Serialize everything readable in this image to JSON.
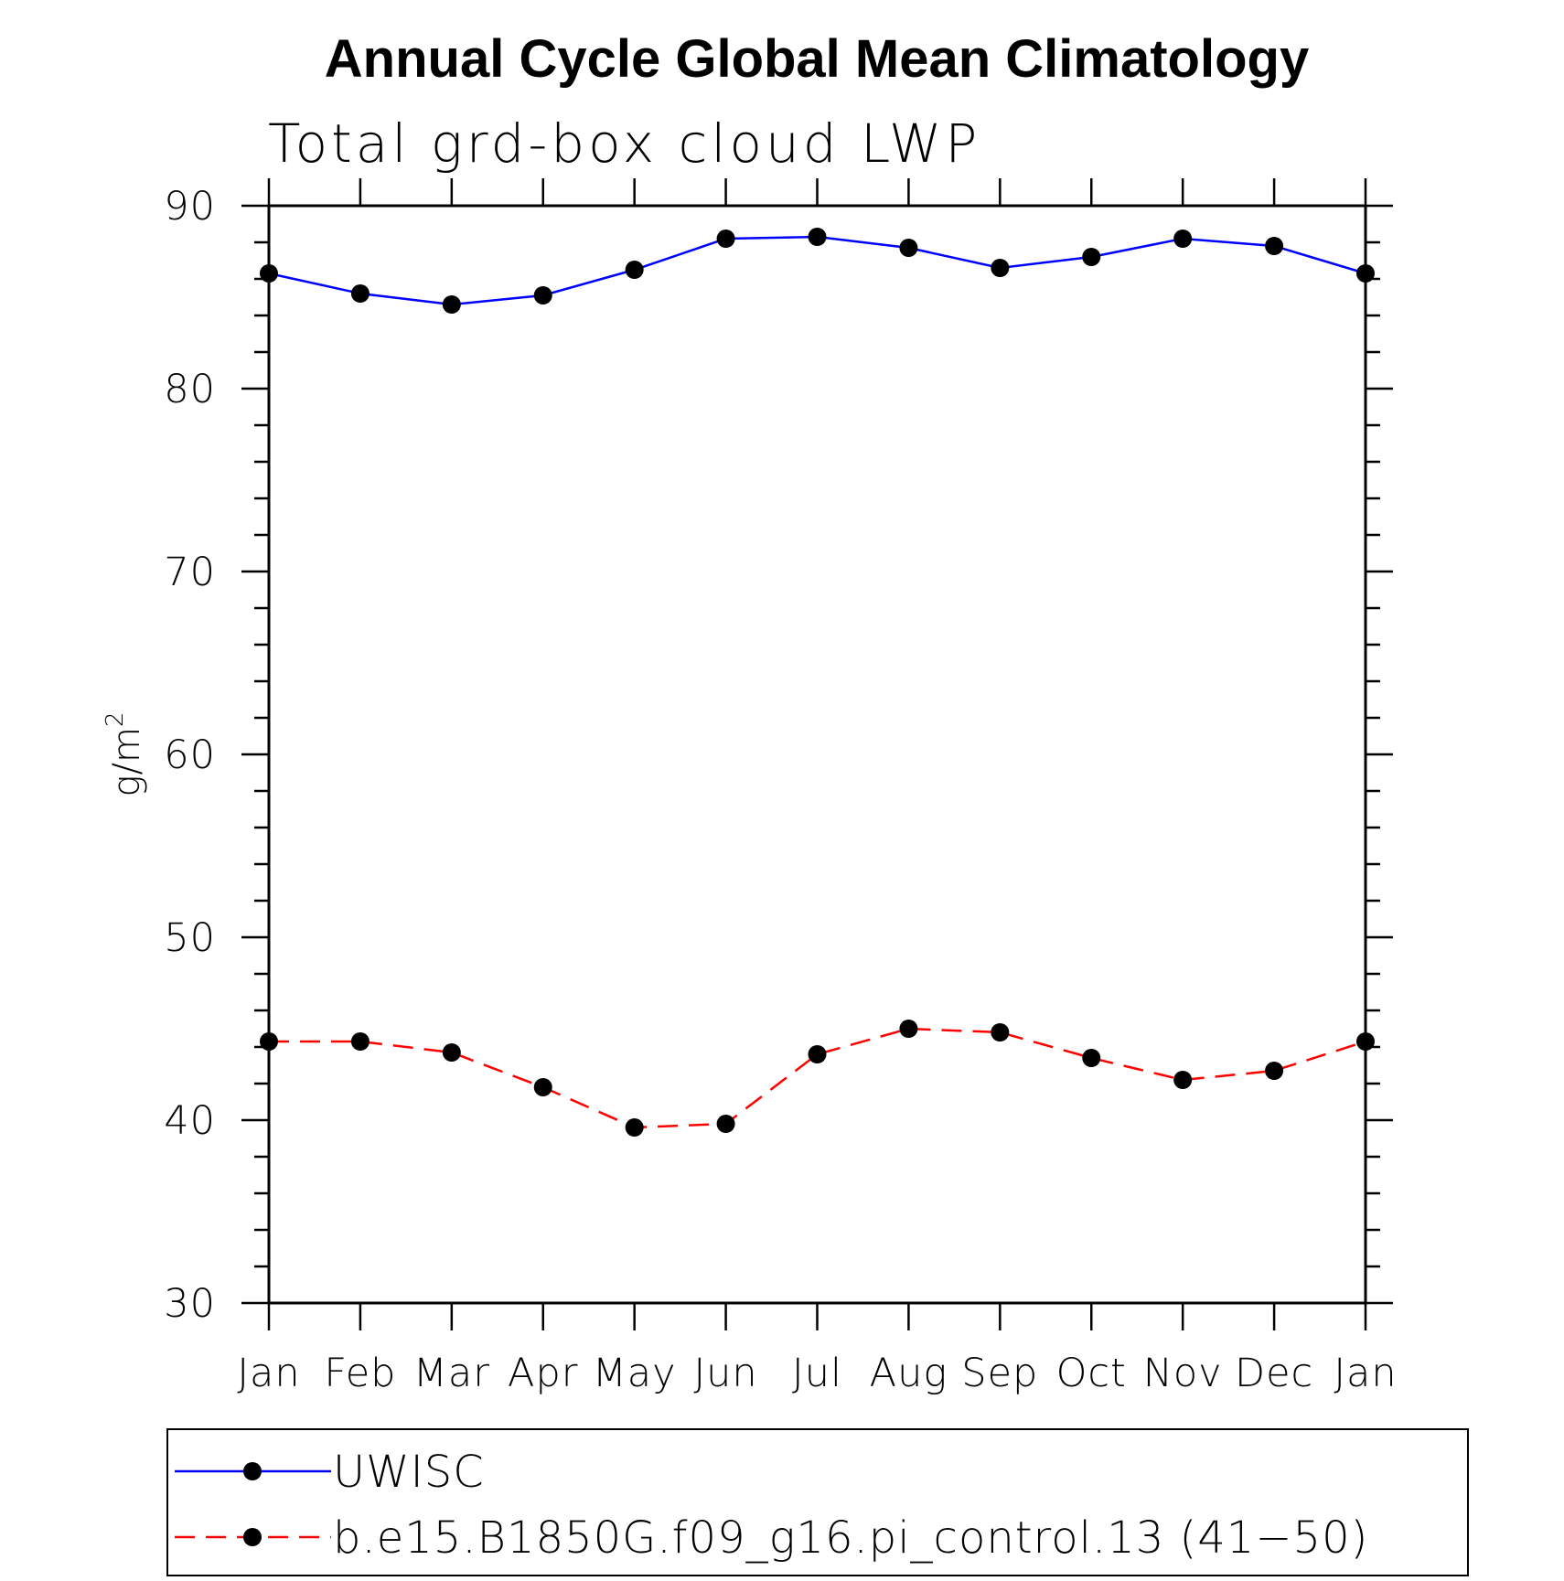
{
  "chart_data": {
    "type": "line",
    "title": "Annual Cycle Global Mean Climatology",
    "subtitle": "Total grd-box cloud LWP",
    "xlabel": "",
    "ylabel": "g/m",
    "ylabel_superscript": "2",
    "categories": [
      "Jan",
      "Feb",
      "Mar",
      "Apr",
      "May",
      "Jun",
      "Jul",
      "Aug",
      "Sep",
      "Oct",
      "Nov",
      "Dec",
      "Jan"
    ],
    "ylim": [
      30,
      90
    ],
    "yticks": [
      "30",
      "40",
      "50",
      "60",
      "70",
      "80",
      "90"
    ],
    "grid": false,
    "legend_position": "bottom",
    "series": [
      {
        "name": "UWISC",
        "color": "#0000ff",
        "dash": "solid",
        "values": [
          86.3,
          85.2,
          84.6,
          85.1,
          86.5,
          88.2,
          88.3,
          87.7,
          86.6,
          87.2,
          88.2,
          87.8,
          86.3
        ]
      },
      {
        "name": "b.e15.B1850G.f09_g16.pi_control.13 (41−50)",
        "color": "#ff0000",
        "dash": "dashed",
        "values": [
          44.3,
          44.3,
          43.7,
          41.8,
          39.6,
          39.8,
          43.6,
          45.0,
          44.8,
          43.4,
          42.2,
          42.7,
          44.3
        ]
      }
    ]
  }
}
